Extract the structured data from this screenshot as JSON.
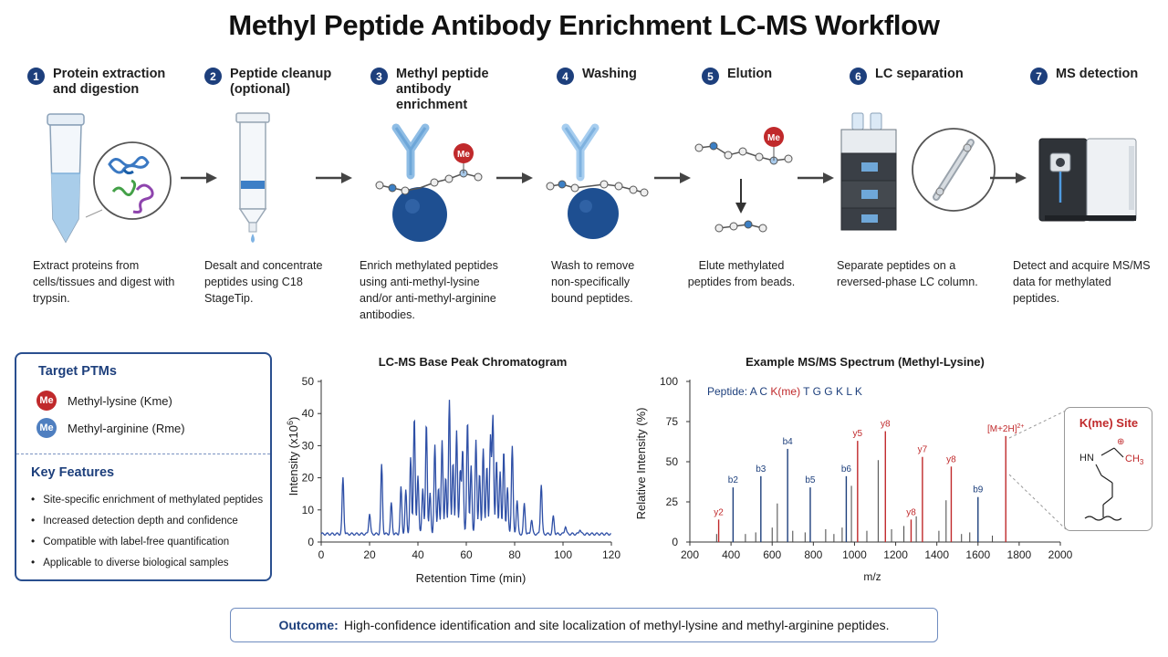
{
  "title": "Methyl Peptide Antibody Enrichment LC-MS Workflow",
  "steps": [
    {
      "num": "1",
      "title": "Protein extraction and digestion",
      "desc": "Extract proteins from cells/tissues and digest with trypsin."
    },
    {
      "num": "2",
      "title": "Peptide cleanup (optional)",
      "desc": "Desalt and concentrate peptides using C18 StageTip."
    },
    {
      "num": "3",
      "title": "Methyl peptide antibody enrichment",
      "desc": "Enrich methylated peptides using anti-methyl-lysine and/or anti-methyl-arginine antibodies."
    },
    {
      "num": "4",
      "title": "Washing",
      "desc": "Wash to remove non-specifically bound peptides."
    },
    {
      "num": "5",
      "title": "Elution",
      "desc": "Elute methylated peptides from beads."
    },
    {
      "num": "6",
      "title": "LC separation",
      "desc": "Separate peptides on a reversed-phase LC column."
    },
    {
      "num": "7",
      "title": "MS detection",
      "desc": "Detect and acquire MS/MS data for methylated peptides."
    }
  ],
  "illustration_labels": {
    "me": "Me"
  },
  "target_ptms": {
    "title": "Target PTMs",
    "items": [
      {
        "badge": "Me",
        "label": "Methyl-lysine (Kme)",
        "color": "#c0292b"
      },
      {
        "badge": "Me",
        "label": "Methyl-arginine (Rme)",
        "color": "#4f7fc0"
      }
    ]
  },
  "key_features": {
    "title": "Key Features",
    "items": [
      "Site-specific enrichment of methylated peptides",
      "Increased detection depth and confidence",
      "Compatible with label-free quantification",
      "Applicable to diverse biological samples"
    ]
  },
  "chromatogram": {
    "title": "LC-MS Base Peak Chromatogram",
    "ylabel_main": "Intensity (x10",
    "ylabel_exp": "6",
    "ylabel_close": ")",
    "xlabel": "Retention Time (min)"
  },
  "spectrum": {
    "title": "Example MS/MS Spectrum (Methyl-Lysine)",
    "ylabel": "Relative Intensity (%)",
    "xlabel": "m/z",
    "peptide_label": "Peptide:",
    "peptide_seq": [
      "A",
      "C",
      "K(me)",
      "T",
      "G",
      "G",
      "K",
      "L",
      "K"
    ],
    "peptide_seq_colors": [
      "#1d3f7c",
      "#1d3f7c",
      "#c0292b",
      "#1d3f7c",
      "#1d3f7c",
      "#1d3f7c",
      "#1d3f7c",
      "#1d3f7c",
      "#1d3f7c"
    ],
    "precursor_main": "[M+2H]",
    "precursor_sup": "2+"
  },
  "site": {
    "title": "K(me) Site",
    "nh": "HN",
    "ch3_main": "CH",
    "ch3_sub": "3"
  },
  "outcome": {
    "label": "Outcome:",
    "text": "High-confidence identification and site localization of methyl-lysine and methyl-arginine peptides."
  },
  "colors": {
    "navy": "#1d3f7c",
    "red": "#c0292b",
    "blue": "#2e4fa6",
    "light_blue": "#4f7fc0"
  },
  "chart_data": [
    {
      "type": "line",
      "title": "LC-MS Base Peak Chromatogram",
      "xlabel": "Retention Time (min)",
      "ylabel": "Intensity (x10^6)",
      "xlim": [
        0,
        120
      ],
      "ylim": [
        0,
        50
      ],
      "xticks": [
        0,
        20,
        40,
        60,
        80,
        100,
        120
      ],
      "yticks": [
        0,
        10,
        20,
        30,
        40,
        50
      ],
      "baseline": 2.5,
      "peaks": [
        {
          "x": 9,
          "y": 20
        },
        {
          "x": 20,
          "y": 9
        },
        {
          "x": 25,
          "y": 24
        },
        {
          "x": 29,
          "y": 12
        },
        {
          "x": 33,
          "y": 17
        },
        {
          "x": 35,
          "y": 16
        },
        {
          "x": 37,
          "y": 26
        },
        {
          "x": 38.5,
          "y": 39
        },
        {
          "x": 40,
          "y": 21
        },
        {
          "x": 42,
          "y": 17
        },
        {
          "x": 43.5,
          "y": 37
        },
        {
          "x": 45,
          "y": 15
        },
        {
          "x": 47,
          "y": 30
        },
        {
          "x": 48.5,
          "y": 17
        },
        {
          "x": 50,
          "y": 32
        },
        {
          "x": 51.5,
          "y": 20
        },
        {
          "x": 53,
          "y": 44
        },
        {
          "x": 54.5,
          "y": 25
        },
        {
          "x": 56,
          "y": 35
        },
        {
          "x": 57.5,
          "y": 22
        },
        {
          "x": 58.5,
          "y": 29
        },
        {
          "x": 60.5,
          "y": 38
        },
        {
          "x": 62,
          "y": 24
        },
        {
          "x": 64,
          "y": 32
        },
        {
          "x": 65.5,
          "y": 21
        },
        {
          "x": 67,
          "y": 29
        },
        {
          "x": 68.5,
          "y": 24
        },
        {
          "x": 70,
          "y": 33
        },
        {
          "x": 71,
          "y": 39
        },
        {
          "x": 72.5,
          "y": 26
        },
        {
          "x": 74,
          "y": 22
        },
        {
          "x": 75.5,
          "y": 28
        },
        {
          "x": 77,
          "y": 17
        },
        {
          "x": 79,
          "y": 30
        },
        {
          "x": 81,
          "y": 13
        },
        {
          "x": 84,
          "y": 12
        },
        {
          "x": 87,
          "y": 7
        },
        {
          "x": 91,
          "y": 18
        },
        {
          "x": 96,
          "y": 8
        },
        {
          "x": 101,
          "y": 5
        },
        {
          "x": 107,
          "y": 4
        }
      ]
    },
    {
      "type": "bar",
      "title": "Example MS/MS Spectrum (Methyl-Lysine)",
      "xlabel": "m/z",
      "ylabel": "Relative Intensity (%)",
      "xlim": [
        200,
        2000
      ],
      "ylim": [
        0,
        100
      ],
      "xticks": [
        200,
        400,
        600,
        800,
        1000,
        1200,
        1400,
        1600,
        1800,
        2000
      ],
      "yticks": [
        0,
        25,
        50,
        75,
        100
      ],
      "labeled_peaks": [
        {
          "mz": 340,
          "intensity": 14,
          "label": "y2",
          "color": "#c0292b"
        },
        {
          "mz": 410,
          "intensity": 34,
          "label": "b2",
          "color": "#1d3f7c"
        },
        {
          "mz": 545,
          "intensity": 41,
          "label": "b3",
          "color": "#1d3f7c"
        },
        {
          "mz": 675,
          "intensity": 58,
          "label": "b4",
          "color": "#1d3f7c"
        },
        {
          "mz": 785,
          "intensity": 34,
          "label": "b5",
          "color": "#1d3f7c"
        },
        {
          "mz": 960,
          "intensity": 41,
          "label": "b6",
          "color": "#1d3f7c"
        },
        {
          "mz": 1015,
          "intensity": 63,
          "label": "y5",
          "color": "#c0292b"
        },
        {
          "mz": 1150,
          "intensity": 69,
          "label": "y8",
          "color": "#c0292b"
        },
        {
          "mz": 1275,
          "intensity": 14,
          "label": "y8",
          "color": "#c0292b"
        },
        {
          "mz": 1330,
          "intensity": 53,
          "label": "y7",
          "color": "#c0292b"
        },
        {
          "mz": 1470,
          "intensity": 47,
          "label": "y8",
          "color": "#c0292b"
        },
        {
          "mz": 1600,
          "intensity": 28,
          "label": "b9",
          "color": "#1d3f7c"
        },
        {
          "mz": 1735,
          "intensity": 66,
          "label": "[M+2H]2+",
          "color": "#c0292b"
        }
      ],
      "unlabeled_peaks": [
        {
          "mz": 330,
          "intensity": 5
        },
        {
          "mz": 470,
          "intensity": 5
        },
        {
          "mz": 520,
          "intensity": 6
        },
        {
          "mz": 600,
          "intensity": 9
        },
        {
          "mz": 625,
          "intensity": 24
        },
        {
          "mz": 700,
          "intensity": 7
        },
        {
          "mz": 760,
          "intensity": 6
        },
        {
          "mz": 860,
          "intensity": 8
        },
        {
          "mz": 900,
          "intensity": 5
        },
        {
          "mz": 940,
          "intensity": 9
        },
        {
          "mz": 985,
          "intensity": 35
        },
        {
          "mz": 1060,
          "intensity": 7
        },
        {
          "mz": 1115,
          "intensity": 51
        },
        {
          "mz": 1180,
          "intensity": 8
        },
        {
          "mz": 1240,
          "intensity": 10
        },
        {
          "mz": 1300,
          "intensity": 16
        },
        {
          "mz": 1410,
          "intensity": 7
        },
        {
          "mz": 1445,
          "intensity": 26
        },
        {
          "mz": 1520,
          "intensity": 5
        },
        {
          "mz": 1560,
          "intensity": 6
        },
        {
          "mz": 1670,
          "intensity": 4
        }
      ]
    }
  ]
}
